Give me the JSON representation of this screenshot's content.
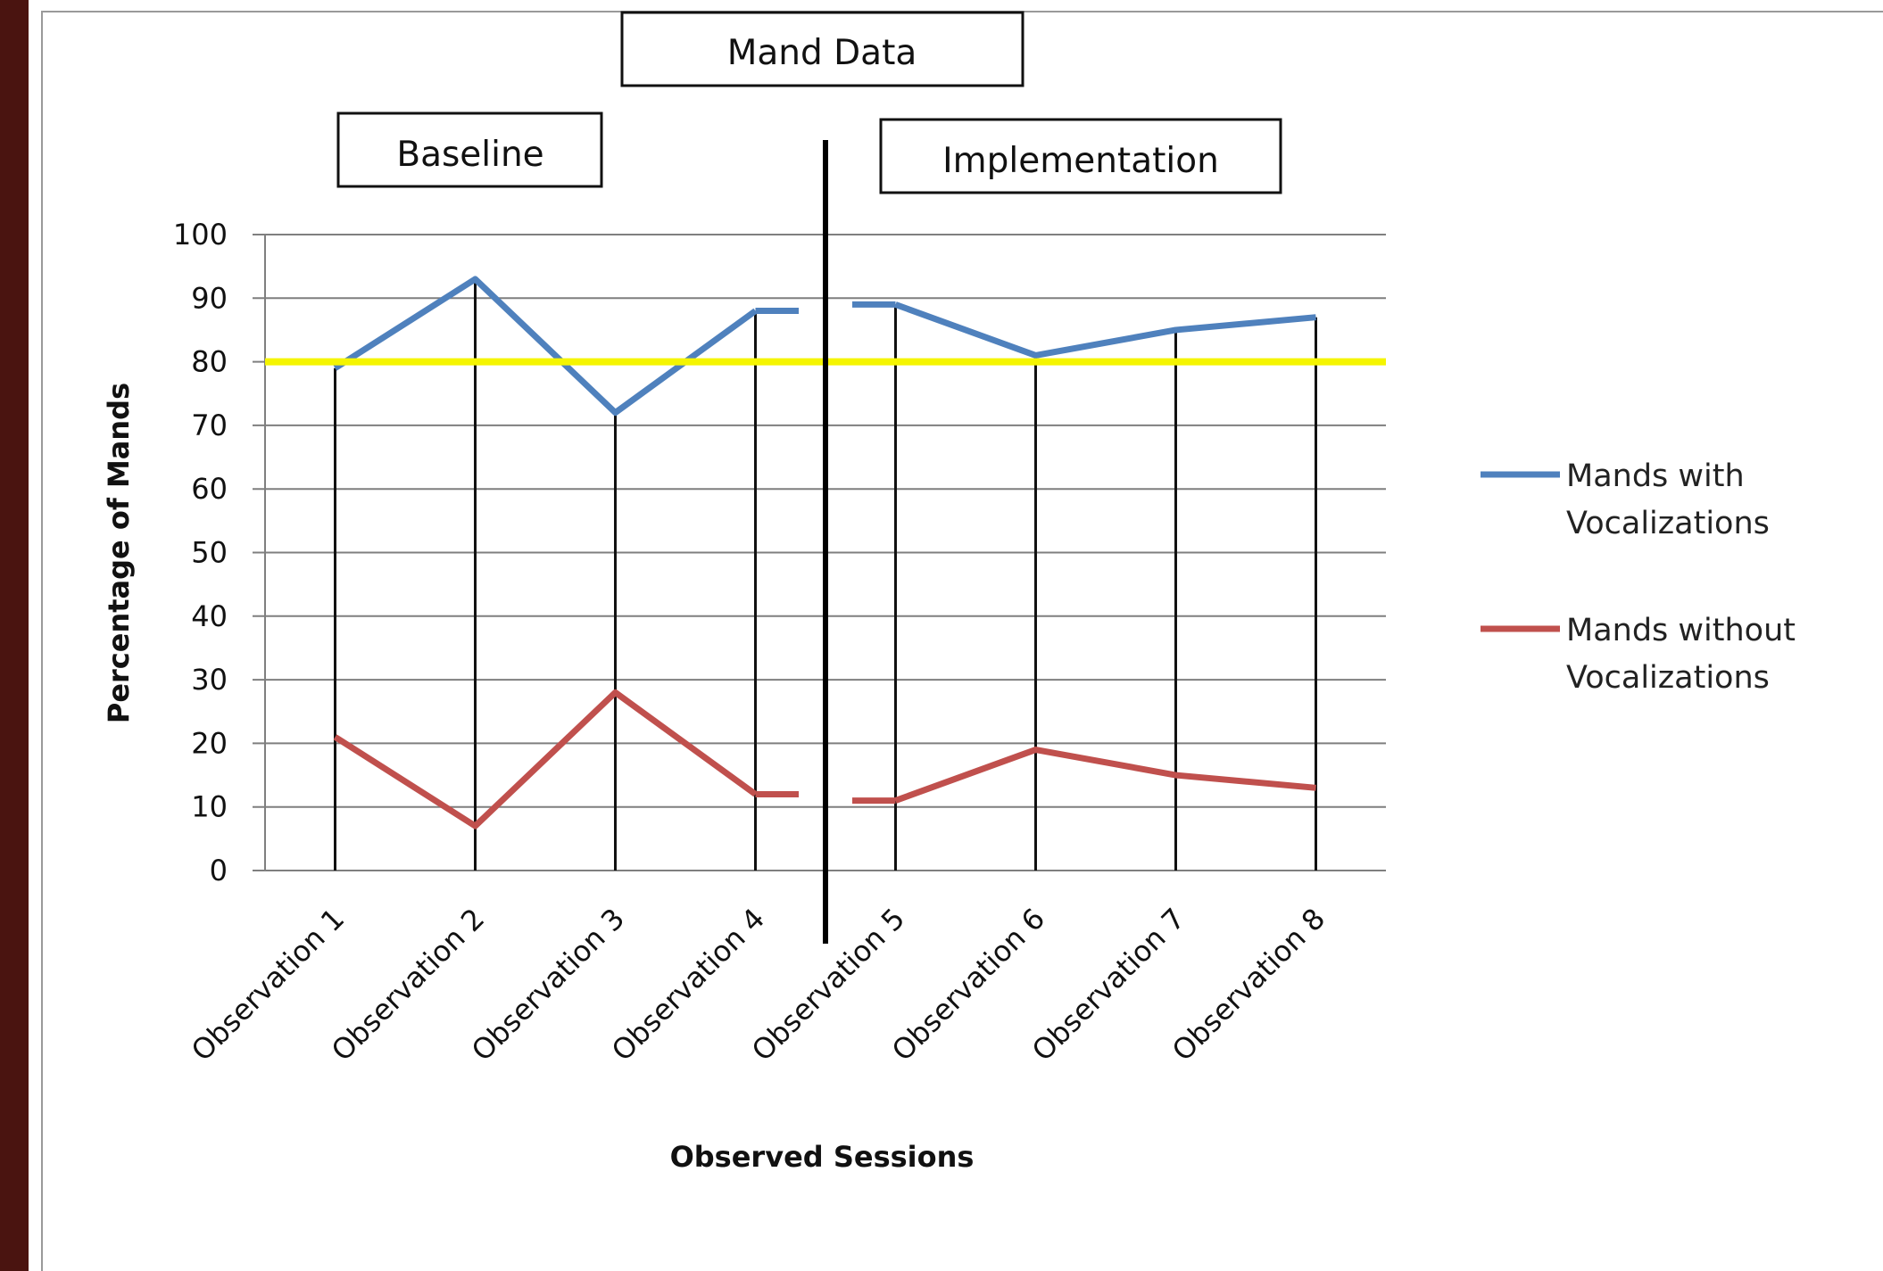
{
  "chart_data": {
    "type": "line",
    "title": "Mand Data",
    "phase_labels": [
      "Baseline",
      "Implementation"
    ],
    "xlabel": "Observed Sessions",
    "ylabel": "Percentage of Mands",
    "categories": [
      "Observation 1",
      "Observation 2",
      "Observation 3",
      "Observation 4",
      "Observation 5",
      "Observation 6",
      "Observation 7",
      "Observation 8"
    ],
    "yticks": [
      "0",
      "10",
      "20",
      "30",
      "40",
      "50",
      "60",
      "70",
      "80",
      "90",
      "100"
    ],
    "ylim": [
      0,
      100
    ],
    "grid": true,
    "phase_change_after": 4,
    "criterion_line": {
      "value": 80,
      "color": "#f5f500"
    },
    "series": [
      {
        "name_line1": "Mands with",
        "name_line2": "Vocalizations",
        "color": "#4f81bd",
        "values": [
          79,
          93,
          72,
          88,
          89,
          81,
          85,
          87
        ]
      },
      {
        "name_line1": "Mands without",
        "name_line2": "Vocalizations",
        "color": "#c0504d",
        "values": [
          21,
          7,
          28,
          12,
          11,
          19,
          15,
          13
        ]
      }
    ],
    "legend_position": "right"
  }
}
